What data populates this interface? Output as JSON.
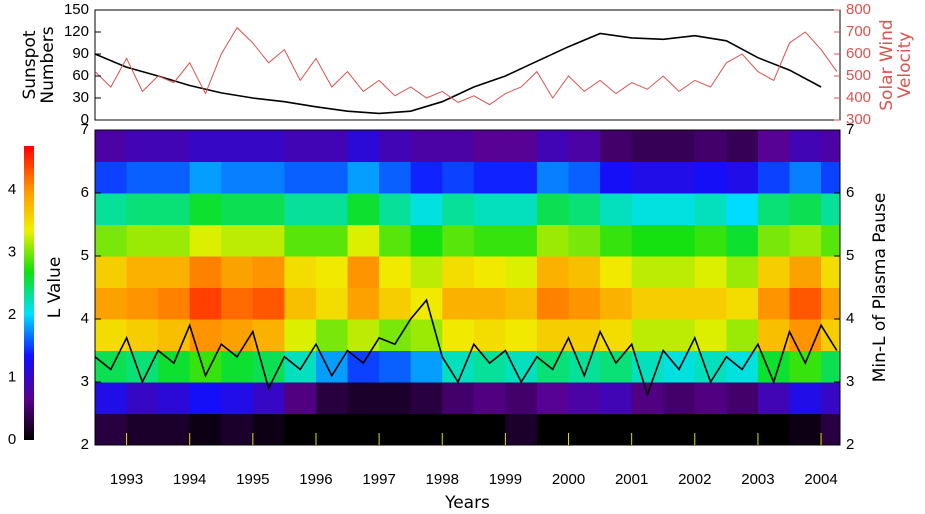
{
  "chart_data": [
    {
      "type": "line",
      "ylabel": [
        "Sunspot",
        "Numbers"
      ],
      "y2label": [
        "Solar Wind",
        "Velocity"
      ],
      "xlim": [
        1992.5,
        2004.3
      ],
      "ylim": [
        0,
        150
      ],
      "yticks": [
        0,
        30,
        60,
        90,
        120,
        150
      ],
      "y2lim": [
        300,
        800
      ],
      "y2ticks": [
        300,
        400,
        500,
        600,
        700,
        800
      ],
      "series": [
        {
          "color": "#000000",
          "x": [
            1992.5,
            1993.0,
            1993.5,
            1994.0,
            1994.5,
            1995.0,
            1995.5,
            1996.0,
            1996.5,
            1997.0,
            1997.5,
            1998.0,
            1998.5,
            1999.0,
            1999.5,
            2000.0,
            2000.5,
            2001.0,
            2001.5,
            2002.0,
            2002.5,
            2003.0,
            2003.5,
            2004.0
          ],
          "values": [
            90,
            72,
            60,
            47,
            37,
            30,
            25,
            18,
            12,
            9,
            12,
            25,
            45,
            60,
            80,
            100,
            118,
            112,
            110,
            115,
            108,
            85,
            68,
            45
          ]
        },
        {
          "color": "#d9534f",
          "axis": "y2",
          "x": [
            1992.5,
            1992.75,
            1993.0,
            1993.25,
            1993.5,
            1993.75,
            1994.0,
            1994.25,
            1994.5,
            1994.75,
            1995.0,
            1995.25,
            1995.5,
            1995.75,
            1996.0,
            1996.25,
            1996.5,
            1996.75,
            1997.0,
            1997.25,
            1997.5,
            1997.75,
            1998.0,
            1998.25,
            1998.5,
            1998.75,
            1999.0,
            1999.25,
            1999.5,
            1999.75,
            2000.0,
            2000.25,
            2000.5,
            2000.75,
            2001.0,
            2001.25,
            2001.5,
            2001.75,
            2002.0,
            2002.25,
            2002.5,
            2002.75,
            2003.0,
            2003.25,
            2003.5,
            2003.75,
            2004.0,
            2004.25
          ],
          "values": [
            520,
            450,
            580,
            430,
            500,
            470,
            560,
            420,
            600,
            720,
            650,
            560,
            620,
            480,
            580,
            450,
            520,
            430,
            480,
            410,
            450,
            400,
            430,
            380,
            410,
            370,
            420,
            450,
            520,
            400,
            500,
            430,
            480,
            420,
            470,
            440,
            500,
            430,
            480,
            450,
            560,
            600,
            520,
            480,
            650,
            700,
            620,
            520
          ]
        }
      ]
    },
    {
      "type": "heatmap",
      "xlabel": "Years",
      "ylabel": "L Value",
      "y2label": "Min-L of Plasma Pause",
      "xlim": [
        1992.5,
        2004.3
      ],
      "xticks": [
        1993,
        1994,
        1995,
        1996,
        1997,
        1998,
        1999,
        2000,
        2001,
        2002,
        2003,
        2004
      ],
      "ylim": [
        2,
        7
      ],
      "yticks": [
        2,
        3,
        4,
        5,
        6,
        7
      ],
      "y2lim": [
        2,
        7
      ],
      "y2ticks": [
        2,
        3,
        4,
        5,
        6,
        7
      ],
      "xbins": [
        1992.5,
        1993.0,
        1993.5,
        1994.0,
        1994.5,
        1995.0,
        1995.5,
        1996.0,
        1996.5,
        1997.0,
        1997.5,
        1998.0,
        1998.5,
        1999.0,
        1999.5,
        2000.0,
        2000.5,
        2001.0,
        2001.5,
        2002.0,
        2002.5,
        2003.0,
        2003.5,
        2004.0,
        2004.3
      ],
      "ybins": [
        2,
        2.5,
        3,
        3.5,
        4,
        4.5,
        5,
        5.5,
        6,
        6.5,
        7
      ],
      "z": [
        [
          0.3,
          0.2,
          0.2,
          0.1,
          0.2,
          0.1,
          0,
          0,
          0,
          0,
          0,
          0,
          0,
          0.2,
          0,
          0,
          0,
          0,
          0,
          0,
          0,
          0,
          0.1,
          0.3
        ],
        [
          1.2,
          1.0,
          1.1,
          1.3,
          1.2,
          1.0,
          0.6,
          0.3,
          0.2,
          0.2,
          0.3,
          0.5,
          0.6,
          0.5,
          0.7,
          0.8,
          0.9,
          0.6,
          0.5,
          0.6,
          0.5,
          0.9,
          1.2,
          1.0
        ],
        [
          2.5,
          2.4,
          2.6,
          2.8,
          2.6,
          2.5,
          2.2,
          1.8,
          1.5,
          1.6,
          1.8,
          2.2,
          2.3,
          2.2,
          2.4,
          2.3,
          2.4,
          2.2,
          2.1,
          2.2,
          2.1,
          2.6,
          2.8,
          2.5
        ],
        [
          3.5,
          3.6,
          3.7,
          4.0,
          3.9,
          3.8,
          3.3,
          3.0,
          3.2,
          3.0,
          3.1,
          3.4,
          3.5,
          3.4,
          3.6,
          3.6,
          3.5,
          3.2,
          3.2,
          3.3,
          3.1,
          3.7,
          4.0,
          3.6
        ],
        [
          3.9,
          4.0,
          4.1,
          4.4,
          4.2,
          4.3,
          3.7,
          3.5,
          3.9,
          3.6,
          3.4,
          3.8,
          3.8,
          3.7,
          4.1,
          4.0,
          3.8,
          3.6,
          3.6,
          3.6,
          3.5,
          4.0,
          4.3,
          3.9
        ],
        [
          3.6,
          3.8,
          3.8,
          4.1,
          3.9,
          4.0,
          3.5,
          3.4,
          4.0,
          3.4,
          3.2,
          3.5,
          3.4,
          3.3,
          3.8,
          3.7,
          3.4,
          3.2,
          3.2,
          3.3,
          3.1,
          3.6,
          3.9,
          3.5
        ],
        [
          3.0,
          3.1,
          3.1,
          3.3,
          3.2,
          3.2,
          2.9,
          2.9,
          3.3,
          2.9,
          2.7,
          2.9,
          2.8,
          2.8,
          3.1,
          3.0,
          2.8,
          2.7,
          2.7,
          2.8,
          2.6,
          3.0,
          3.1,
          2.9
        ],
        [
          2.3,
          2.4,
          2.4,
          2.6,
          2.5,
          2.5,
          2.3,
          2.3,
          2.6,
          2.3,
          2.1,
          2.3,
          2.2,
          2.2,
          2.5,
          2.4,
          2.2,
          2.1,
          2.1,
          2.2,
          2.0,
          2.4,
          2.5,
          2.3
        ],
        [
          1.5,
          1.6,
          1.6,
          1.8,
          1.7,
          1.7,
          1.6,
          1.6,
          1.8,
          1.6,
          1.4,
          1.5,
          1.4,
          1.4,
          1.7,
          1.6,
          1.3,
          1.2,
          1.2,
          1.3,
          1.2,
          1.5,
          1.7,
          1.5
        ],
        [
          0.8,
          0.9,
          0.9,
          1.0,
          1.0,
          1.0,
          0.9,
          0.9,
          1.1,
          0.9,
          0.8,
          0.8,
          0.7,
          0.7,
          0.9,
          0.8,
          0.5,
          0.4,
          0.4,
          0.5,
          0.4,
          0.7,
          0.9,
          0.8
        ]
      ],
      "zlim": [
        0,
        4.7
      ],
      "colorscale": [
        "#000000",
        "#5a0090",
        "#1010ff",
        "#00e0ff",
        "#10e010",
        "#f0f000",
        "#ff9000",
        "#ff0000"
      ],
      "colorbar_ticks": [
        0,
        1,
        2,
        3,
        4
      ],
      "series": [
        {
          "color": "#000000",
          "x": [
            1992.5,
            1992.75,
            1993.0,
            1993.25,
            1993.5,
            1993.75,
            1994.0,
            1994.25,
            1994.5,
            1994.75,
            1995.0,
            1995.25,
            1995.5,
            1995.75,
            1996.0,
            1996.25,
            1996.5,
            1996.75,
            1997.0,
            1997.25,
            1997.5,
            1997.75,
            1998.0,
            1998.25,
            1998.5,
            1998.75,
            1999.0,
            1999.25,
            1999.5,
            1999.75,
            2000.0,
            2000.25,
            2000.5,
            2000.75,
            2001.0,
            2001.25,
            2001.5,
            2001.75,
            2002.0,
            2002.25,
            2002.5,
            2002.75,
            2003.0,
            2003.25,
            2003.5,
            2003.75,
            2004.0,
            2004.25
          ],
          "values": [
            3.4,
            3.2,
            3.7,
            3.0,
            3.5,
            3.3,
            3.9,
            3.1,
            3.6,
            3.4,
            3.8,
            2.9,
            3.4,
            3.2,
            3.6,
            3.1,
            3.5,
            3.3,
            3.7,
            3.6,
            4.0,
            4.3,
            3.4,
            3.0,
            3.6,
            3.3,
            3.5,
            3.0,
            3.4,
            3.2,
            3.7,
            3.1,
            3.8,
            3.3,
            3.6,
            2.8,
            3.5,
            3.2,
            3.7,
            3.0,
            3.4,
            3.2,
            3.6,
            3.0,
            3.8,
            3.3,
            3.9,
            3.5
          ]
        }
      ]
    }
  ]
}
